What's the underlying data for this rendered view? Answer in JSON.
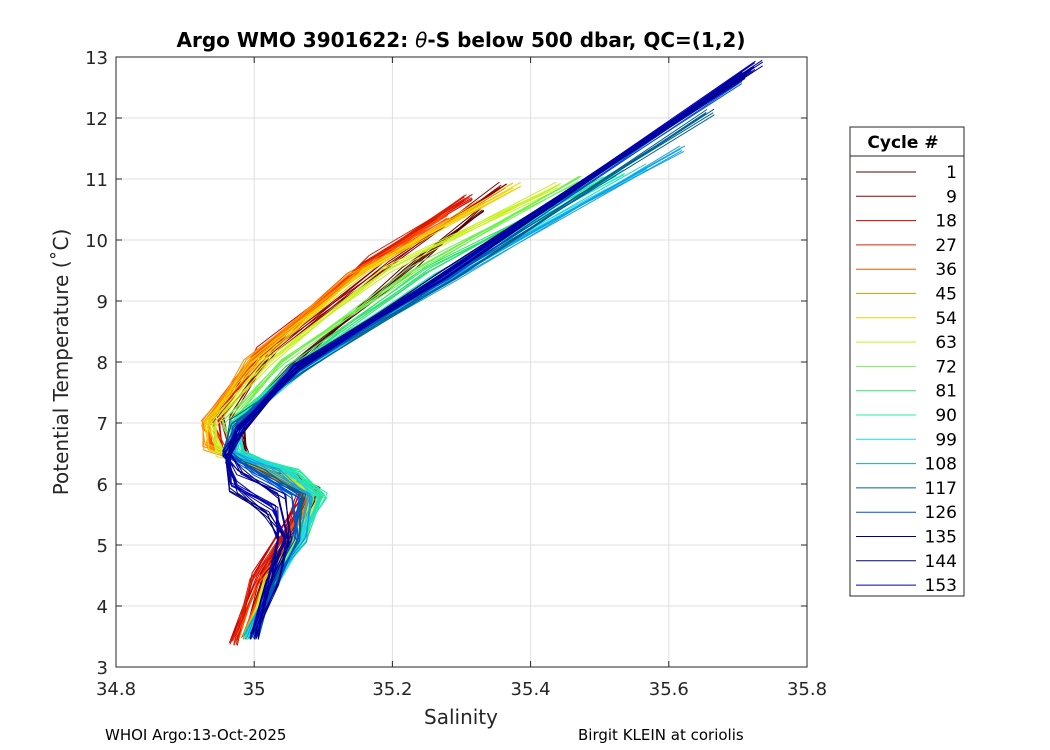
{
  "chart_data": {
    "type": "line",
    "title_prefix": "Argo WMO 3901622: ",
    "title_theta": "θ",
    "title_suffix": "-S below 500 dbar,  QC=(1,2)",
    "xlabel": "Salinity",
    "ylabel": "Potential Temperature (˚C)",
    "xlim": [
      34.8,
      35.8
    ],
    "ylim": [
      3,
      13
    ],
    "xticks": [
      34.8,
      35,
      35.2,
      35.4,
      35.6,
      35.8
    ],
    "xtick_labels": [
      "34.8",
      "35",
      "35.2",
      "35.4",
      "35.6",
      "35.8"
    ],
    "yticks": [
      3,
      4,
      5,
      6,
      7,
      8,
      9,
      10,
      11,
      12,
      13
    ],
    "ytick_labels": [
      "3",
      "4",
      "5",
      "6",
      "7",
      "8",
      "9",
      "10",
      "11",
      "12",
      "13"
    ],
    "grid": true,
    "legend": {
      "title": "Cycle #",
      "position": "right",
      "entries": [
        "1",
        "9",
        "18",
        "27",
        "36",
        "45",
        "54",
        "63",
        "72",
        "81",
        "90",
        "99",
        "108",
        "117",
        "126",
        "135",
        "144",
        "153"
      ],
      "colors": [
        "#5a0000",
        "#900000",
        "#cc0000",
        "#e02000",
        "#ff5000",
        "#ff9000",
        "#f0d000",
        "#c8f020",
        "#70f050",
        "#30e070",
        "#20f0b0",
        "#20d8e0",
        "#10a0e8",
        "#006090",
        "#0050d0",
        "#000090",
        "#00007a",
        "#0000b0"
      ]
    },
    "series": [
      {
        "name": "1",
        "color": "#5a0000",
        "x": [
          34.99,
          35.02,
          35.06,
          35.09,
          35.05,
          34.99,
          34.98,
          35.06,
          35.22,
          35.33
        ],
        "y": [
          3.5,
          4.5,
          5.2,
          5.9,
          6.2,
          6.4,
          7.0,
          8.0,
          9.5,
          10.5
        ]
      },
      {
        "name": "9",
        "color": "#900000",
        "x": [
          34.98,
          35.01,
          35.05,
          35.08,
          35.04,
          34.97,
          34.96,
          35.03,
          35.19,
          35.36
        ],
        "y": [
          3.5,
          4.5,
          5.2,
          5.9,
          6.2,
          6.5,
          7.1,
          8.2,
          9.6,
          10.9
        ]
      },
      {
        "name": "18",
        "color": "#cc0000",
        "x": [
          34.97,
          35.0,
          35.04,
          35.07,
          35.03,
          34.96,
          34.95,
          35.01,
          35.16,
          35.31
        ],
        "y": [
          3.4,
          4.5,
          5.2,
          5.9,
          6.2,
          6.5,
          7.1,
          8.2,
          9.6,
          10.7
        ]
      },
      {
        "name": "27",
        "color": "#e02000",
        "x": [
          34.97,
          35.0,
          35.04,
          35.08,
          35.02,
          34.95,
          34.94,
          35.01,
          35.17,
          35.31
        ],
        "y": [
          3.4,
          4.4,
          5.1,
          5.8,
          6.2,
          6.6,
          7.1,
          8.1,
          9.7,
          10.7
        ]
      },
      {
        "name": "36",
        "color": "#ff5000",
        "x": [
          34.98,
          35.01,
          35.05,
          35.08,
          35.02,
          34.94,
          34.93,
          35.0,
          35.14,
          35.28
        ],
        "y": [
          3.5,
          4.4,
          5.1,
          5.8,
          6.2,
          6.6,
          7.0,
          8.1,
          9.4,
          10.4
        ]
      },
      {
        "name": "45",
        "color": "#ff9000",
        "x": [
          34.99,
          35.02,
          35.06,
          35.08,
          35.02,
          34.93,
          34.93,
          34.99,
          35.14,
          35.33
        ],
        "y": [
          3.5,
          4.4,
          5.1,
          5.8,
          6.2,
          6.6,
          7.0,
          8.0,
          9.4,
          10.6
        ]
      },
      {
        "name": "54",
        "color": "#f0d000",
        "x": [
          34.99,
          35.02,
          35.06,
          35.09,
          35.03,
          34.94,
          34.93,
          35.0,
          35.16,
          35.38
        ],
        "y": [
          3.5,
          4.4,
          5.1,
          5.8,
          6.2,
          6.6,
          7.0,
          8.0,
          9.5,
          10.9
        ]
      },
      {
        "name": "63",
        "color": "#c8f020",
        "x": [
          34.99,
          35.02,
          35.06,
          35.09,
          35.04,
          34.95,
          34.94,
          35.02,
          35.19,
          35.44
        ],
        "y": [
          3.5,
          4.4,
          5.1,
          5.8,
          6.2,
          6.5,
          7.0,
          8.0,
          9.5,
          10.9
        ]
      },
      {
        "name": "72",
        "color": "#70f050",
        "x": [
          34.99,
          35.03,
          35.07,
          35.09,
          35.05,
          34.97,
          34.96,
          35.04,
          35.23,
          35.47
        ],
        "y": [
          3.5,
          4.4,
          5.1,
          5.8,
          6.2,
          6.5,
          7.0,
          8.0,
          9.5,
          11.0
        ]
      },
      {
        "name": "81",
        "color": "#30e070",
        "x": [
          34.99,
          35.03,
          35.07,
          35.1,
          35.06,
          34.98,
          34.97,
          35.05,
          35.25,
          35.5
        ],
        "y": [
          3.5,
          4.4,
          5.1,
          5.8,
          6.2,
          6.5,
          7.0,
          7.9,
          9.5,
          11.0
        ]
      },
      {
        "name": "90",
        "color": "#20f0b0",
        "x": [
          34.99,
          35.03,
          35.07,
          35.1,
          35.06,
          34.98,
          34.97,
          35.06,
          35.26,
          35.53
        ],
        "y": [
          3.5,
          4.4,
          5.1,
          5.8,
          6.2,
          6.5,
          7.0,
          7.9,
          9.4,
          11.1
        ]
      },
      {
        "name": "99",
        "color": "#20d8e0",
        "x": [
          34.99,
          35.03,
          35.07,
          35.09,
          35.05,
          34.98,
          34.98,
          35.07,
          35.28,
          35.57
        ],
        "y": [
          3.5,
          4.4,
          5.1,
          5.8,
          6.2,
          6.5,
          7.0,
          7.9,
          9.4,
          11.2
        ]
      },
      {
        "name": "108",
        "color": "#10a0e8",
        "x": [
          34.99,
          35.03,
          35.07,
          35.08,
          35.03,
          34.97,
          34.98,
          35.07,
          35.29,
          35.62
        ],
        "y": [
          3.5,
          4.4,
          5.1,
          5.8,
          6.2,
          6.5,
          7.0,
          7.9,
          9.4,
          11.5
        ]
      },
      {
        "name": "117",
        "color": "#006090",
        "x": [
          35.0,
          35.03,
          35.06,
          35.07,
          35.01,
          34.96,
          34.97,
          35.07,
          35.29,
          35.66
        ],
        "y": [
          3.5,
          4.4,
          5.1,
          5.8,
          6.2,
          6.5,
          7.0,
          7.9,
          9.4,
          12.1
        ]
      },
      {
        "name": "126",
        "color": "#0050d0",
        "x": [
          35.0,
          35.03,
          35.06,
          35.06,
          35.0,
          34.96,
          34.97,
          35.06,
          35.28,
          35.7
        ],
        "y": [
          3.5,
          4.4,
          5.1,
          5.8,
          6.2,
          6.5,
          6.9,
          7.9,
          9.4,
          12.6
        ]
      },
      {
        "name": "135",
        "color": "#000090",
        "x": [
          35.0,
          35.03,
          35.05,
          35.04,
          34.98,
          34.96,
          34.98,
          35.06,
          35.27,
          35.71
        ],
        "y": [
          3.5,
          4.4,
          5.1,
          5.8,
          6.2,
          6.5,
          6.9,
          7.9,
          9.4,
          12.7
        ]
      },
      {
        "name": "144",
        "color": "#00007a",
        "x": [
          35.0,
          35.02,
          35.04,
          35.02,
          34.97,
          34.96,
          34.98,
          35.06,
          35.27,
          35.72
        ],
        "y": [
          3.5,
          4.4,
          5.1,
          5.5,
          5.9,
          6.4,
          6.9,
          7.9,
          9.4,
          12.8
        ]
      },
      {
        "name": "153",
        "color": "#0000b0",
        "x": [
          35.0,
          35.02,
          35.04,
          35.03,
          34.97,
          34.96,
          34.98,
          35.06,
          35.27,
          35.73
        ],
        "y": [
          3.5,
          4.4,
          5.1,
          5.6,
          6.0,
          6.5,
          6.9,
          7.9,
          9.4,
          12.9
        ]
      }
    ]
  },
  "footer": {
    "left": "WHOI Argo:13-Oct-2025",
    "right": "Birgit KLEIN at coriolis"
  }
}
